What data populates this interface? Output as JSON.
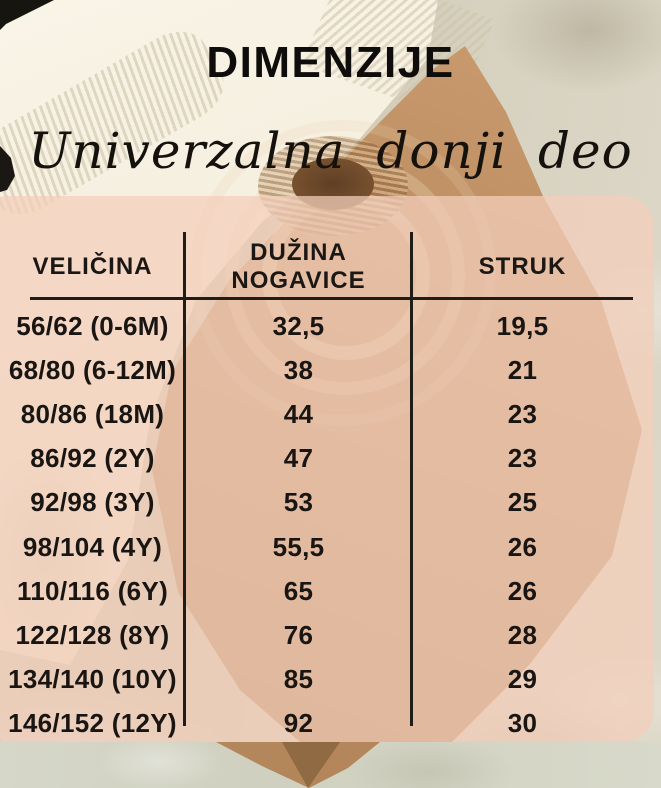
{
  "title": "DIMENZIJE",
  "subtitle": "Univerzalna donji deo",
  "chart_data": {
    "type": "table",
    "title": "DIMENZIJE",
    "subtitle": "Univerzalna donji deo",
    "columns": [
      "VELIČINA",
      "DUŽINA NOGAVICE",
      "STRUK"
    ],
    "rows": [
      {
        "velicina": "56/62 (0-6M)",
        "duzina_nogavice": "32,5",
        "struk": "19,5"
      },
      {
        "velicina": "68/80 (6-12M)",
        "duzina_nogavice": "38",
        "struk": "21"
      },
      {
        "velicina": "80/86 (18M)",
        "duzina_nogavice": "44",
        "struk": "23"
      },
      {
        "velicina": "86/92 (2Y)",
        "duzina_nogavice": "47",
        "struk": "23"
      },
      {
        "velicina": "92/98 (3Y)",
        "duzina_nogavice": "53",
        "struk": "25"
      },
      {
        "velicina": "98/104 (4Y)",
        "duzina_nogavice": "55,5",
        "struk": "26"
      },
      {
        "velicina": "110/116 (6Y)",
        "duzina_nogavice": "65",
        "struk": "26"
      },
      {
        "velicina": "122/128 (8Y)",
        "duzina_nogavice": "76",
        "struk": "28"
      },
      {
        "velicina": "134/140 (10Y)",
        "duzina_nogavice": "85",
        "struk": "29"
      },
      {
        "velicina": "146/152 (12Y)",
        "duzina_nogavice": "92",
        "struk": "30"
      }
    ],
    "layout": {
      "header_rule": true,
      "column_dividers": 2,
      "legend": "none"
    }
  },
  "colors": {
    "overlay_panel": "#f3ceba",
    "text": "#1b1715",
    "camel_sweater": "#bb8c5f",
    "cream_sweater": "#f6f1e3",
    "stone_background": "#d5cfbe"
  }
}
